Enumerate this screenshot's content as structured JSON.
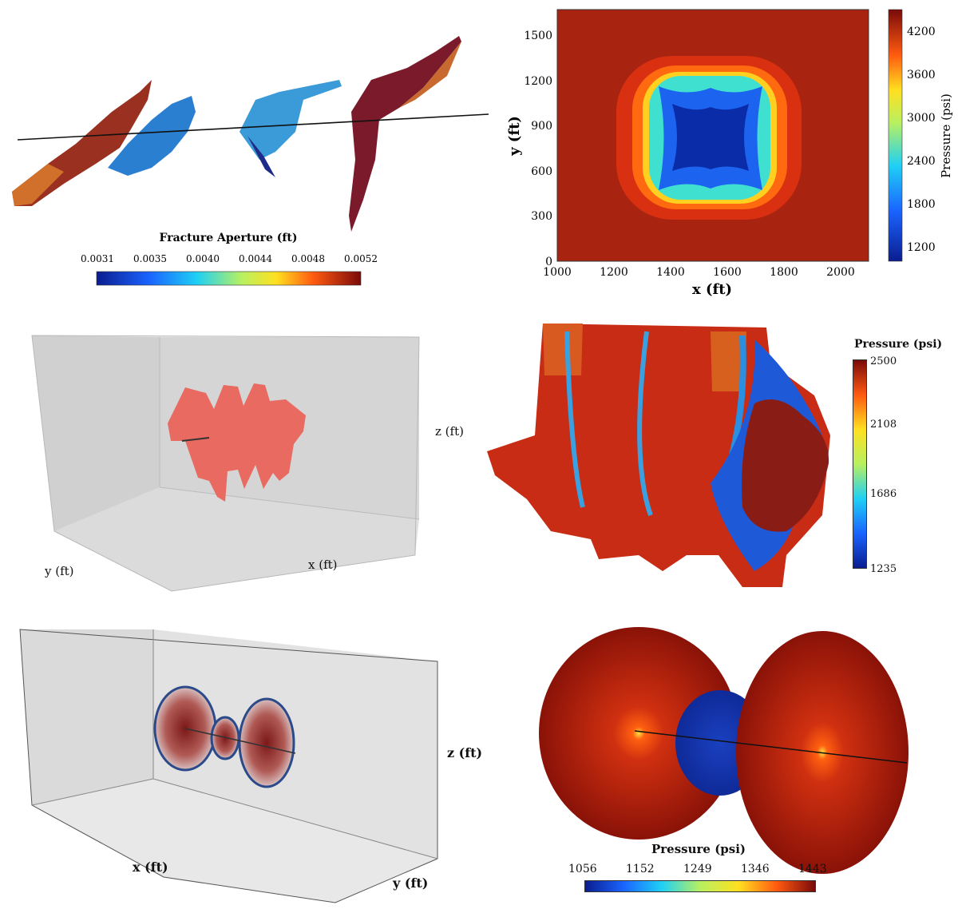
{
  "panel_a": {
    "colorbar_title": "Fracture Aperture (ft)",
    "colorbar_ticks": [
      "0.0031",
      "0.0035",
      "0.0040",
      "0.0044",
      "0.0048",
      "0.0052"
    ]
  },
  "panel_b": {
    "xlabel": "x (ft)",
    "ylabel": "y (ft)",
    "colorbar_label": "Pressure (psi)",
    "xticks": [
      "1000",
      "1200",
      "1400",
      "1600",
      "1800",
      "2000"
    ],
    "yticks": [
      "0",
      "300",
      "600",
      "900",
      "1200",
      "1500"
    ],
    "colorbar_ticks": [
      "1200",
      "1800",
      "2400",
      "3000",
      "3600",
      "4200"
    ]
  },
  "panel_c": {
    "xlabel": "x (ft)",
    "ylabel": "y (ft)",
    "zlabel": "z (ft)"
  },
  "panel_d": {
    "colorbar_title": "Pressure (psi)",
    "colorbar_ticks": [
      "2500",
      "2108",
      "1686",
      "1235"
    ]
  },
  "panel_e": {
    "xlabel": "x (ft)",
    "ylabel": "y (ft)",
    "zlabel": "z (ft)"
  },
  "panel_f": {
    "colorbar_title": "Pressure (psi)",
    "colorbar_ticks": [
      "1056",
      "1152",
      "1249",
      "1346",
      "1443"
    ]
  },
  "colors": {
    "dark_red": "#7a1010",
    "red": "#c8321c",
    "blue": "#1034b0",
    "box_gray": "#dcdcdc"
  }
}
